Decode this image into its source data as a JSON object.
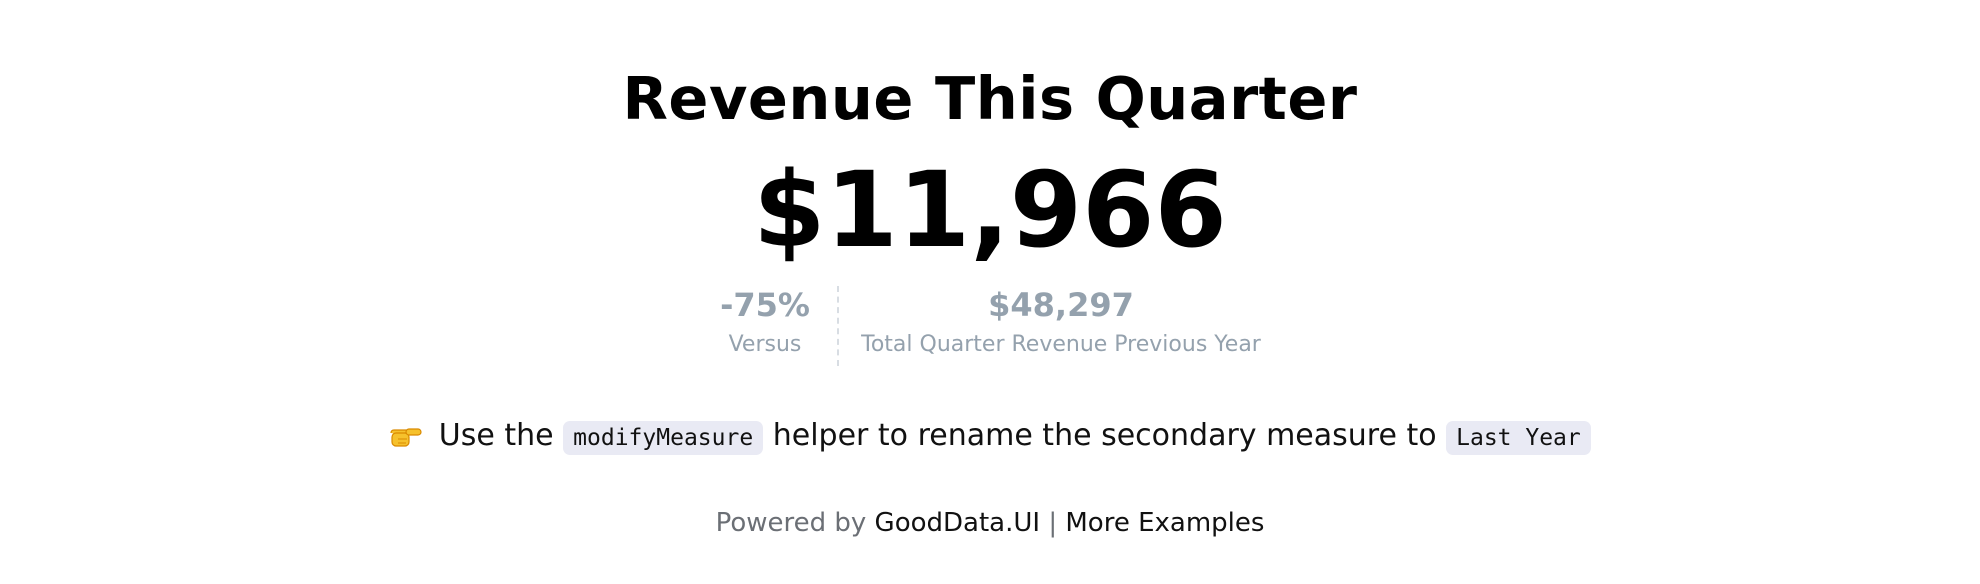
{
  "kpi": {
    "title": "Revenue This Quarter",
    "value": "$11,966",
    "comparison": {
      "change": "-75%",
      "change_label": "Versus",
      "previous_value": "$48,297",
      "previous_label": "Total Quarter Revenue Previous Year"
    }
  },
  "hint": {
    "icon": "pointing-hand-icon",
    "text_before": "Use the",
    "code_helper": "modifyMeasure",
    "text_middle": "helper to rename the secondary measure to",
    "code_label": "Last Year"
  },
  "footer": {
    "powered_by": "Powered by",
    "link_goodata": "GoodData.UI",
    "separator": "|",
    "link_examples": "More Examples"
  },
  "colors": {
    "muted": "#94a1ad",
    "code_bg": "#e9eaf4"
  }
}
